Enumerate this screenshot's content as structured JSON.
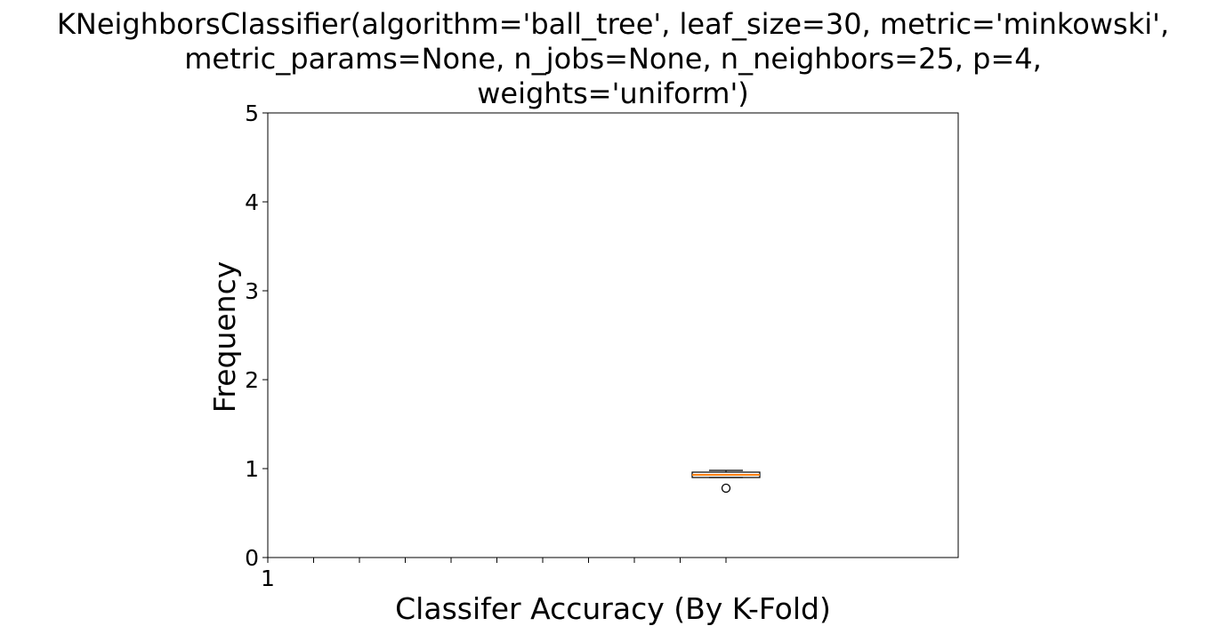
{
  "chart_data": {
    "type": "box",
    "title_lines": [
      "KNeighborsClassifier(algorithm='ball_tree', leaf_size=30, metric='minkowski',",
      "metric_params=None, n_jobs=None, n_neighbors=25, p=4,",
      "weights='uniform')"
    ],
    "xlabel": "Classifer Accuracy (By K-Fold)",
    "ylabel": "Frequency",
    "ylim": [
      0,
      5
    ],
    "yticks": [
      "0",
      "1",
      "2",
      "3",
      "4",
      "5"
    ],
    "xtick_labels": [
      "1"
    ],
    "grid": false,
    "box": {
      "position": 11,
      "whisker_low": 0.9,
      "q1": 0.9,
      "median": 0.93,
      "q3": 0.96,
      "whisker_high": 0.98,
      "outliers": [
        0.78
      ]
    },
    "colors": {
      "median": "#ff7f0e",
      "box_edge": "#000000",
      "axes": "#000000"
    }
  }
}
